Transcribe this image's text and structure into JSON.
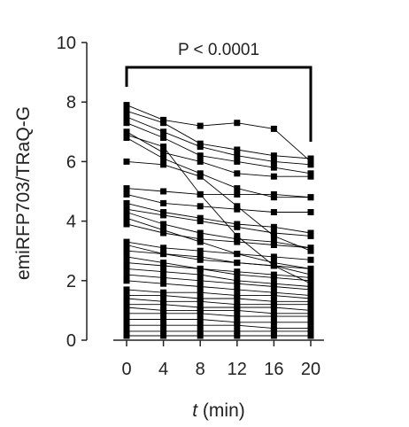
{
  "chart_data": {
    "type": "line",
    "title": "",
    "xlabel_italic": "t",
    "xlabel_rest": " (min)",
    "ylabel": "emiRFP703/TRaQ-G",
    "x": [
      0,
      4,
      8,
      12,
      16,
      20
    ],
    "x_tick_labels": [
      "0",
      "4",
      "8",
      "12",
      "16",
      "20"
    ],
    "y_ticks": [
      0,
      2,
      4,
      6,
      8,
      10
    ],
    "y_tick_labels": [
      "0",
      "2",
      "4",
      "6",
      "8",
      "10"
    ],
    "xlim": [
      0,
      20
    ],
    "ylim": [
      0,
      10
    ],
    "grid": false,
    "legend": "none",
    "annotation": {
      "text": "P < 0.0001",
      "from_x": 0,
      "to_x": 20
    },
    "series": [
      {
        "values": [
          7.9,
          7.4,
          7.2,
          7.3,
          7.1,
          6.0
        ]
      },
      {
        "values": [
          7.7,
          7.3,
          6.6,
          6.4,
          6.2,
          6.1
        ]
      },
      {
        "values": [
          7.5,
          7.0,
          6.5,
          6.2,
          6.0,
          5.9
        ]
      },
      {
        "values": [
          7.3,
          6.8,
          6.2,
          6.0,
          5.8,
          5.6
        ]
      },
      {
        "values": [
          7.0,
          6.3,
          6.0,
          5.6,
          5.5,
          5.5
        ]
      },
      {
        "values": [
          6.8,
          6.1,
          5.6,
          5.1,
          4.8,
          4.8
        ]
      },
      {
        "values": [
          6.9,
          6.5,
          4.9,
          3.5,
          2.5,
          1.9
        ]
      },
      {
        "values": [
          6.0,
          5.9,
          5.5,
          4.5,
          3.5,
          3.0
        ]
      },
      {
        "values": [
          5.1,
          5.0,
          4.9,
          4.9,
          4.9,
          4.8
        ]
      },
      {
        "values": [
          4.9,
          4.6,
          4.5,
          4.4,
          4.3,
          4.3
        ]
      },
      {
        "values": [
          4.6,
          4.3,
          4.1,
          3.9,
          3.8,
          3.6
        ]
      },
      {
        "values": [
          4.4,
          4.2,
          4.0,
          3.8,
          3.6,
          3.5
        ]
      },
      {
        "values": [
          4.3,
          3.9,
          3.6,
          3.4,
          3.3,
          3.1
        ]
      },
      {
        "values": [
          4.1,
          3.7,
          3.3,
          2.9,
          2.6,
          2.4
        ]
      },
      {
        "values": [
          3.9,
          3.6,
          3.4,
          3.3,
          3.2,
          3.1
        ]
      },
      {
        "values": [
          3.3,
          3.1,
          3.0,
          2.9,
          2.8,
          2.7
        ]
      },
      {
        "values": [
          3.2,
          2.9,
          2.7,
          2.6,
          2.5,
          2.4
        ]
      },
      {
        "values": [
          3.0,
          2.9,
          2.8,
          2.6,
          2.5,
          2.2
        ]
      },
      {
        "values": [
          2.8,
          2.6,
          2.4,
          2.3,
          2.2,
          2.1
        ]
      },
      {
        "values": [
          2.6,
          2.5,
          2.4,
          2.2,
          2.1,
          2.0
        ]
      },
      {
        "values": [
          2.4,
          2.3,
          2.2,
          2.0,
          1.9,
          1.8
        ]
      },
      {
        "values": [
          2.2,
          2.1,
          2.0,
          1.9,
          1.8,
          1.7
        ]
      },
      {
        "values": [
          2.0,
          1.9,
          1.8,
          1.7,
          1.6,
          1.5
        ]
      },
      {
        "values": [
          1.7,
          1.6,
          1.6,
          1.5,
          1.5,
          1.4
        ]
      },
      {
        "values": [
          1.5,
          1.5,
          1.4,
          1.4,
          1.3,
          1.3
        ]
      },
      {
        "values": [
          1.4,
          1.3,
          1.3,
          1.2,
          1.2,
          1.2
        ]
      },
      {
        "values": [
          1.2,
          1.2,
          1.1,
          1.1,
          1.1,
          1.0
        ]
      },
      {
        "values": [
          1.1,
          1.0,
          1.0,
          1.0,
          0.9,
          0.9
        ]
      },
      {
        "values": [
          0.9,
          0.9,
          0.9,
          0.8,
          0.8,
          0.8
        ]
      },
      {
        "values": [
          0.7,
          0.7,
          0.7,
          0.6,
          0.6,
          0.6
        ]
      },
      {
        "values": [
          0.5,
          0.5,
          0.5,
          0.5,
          0.4,
          0.4
        ]
      },
      {
        "values": [
          0.3,
          0.3,
          0.3,
          0.3,
          0.3,
          0.3
        ]
      },
      {
        "values": [
          0.15,
          0.15,
          0.15,
          0.15,
          0.15,
          0.15
        ]
      }
    ]
  }
}
